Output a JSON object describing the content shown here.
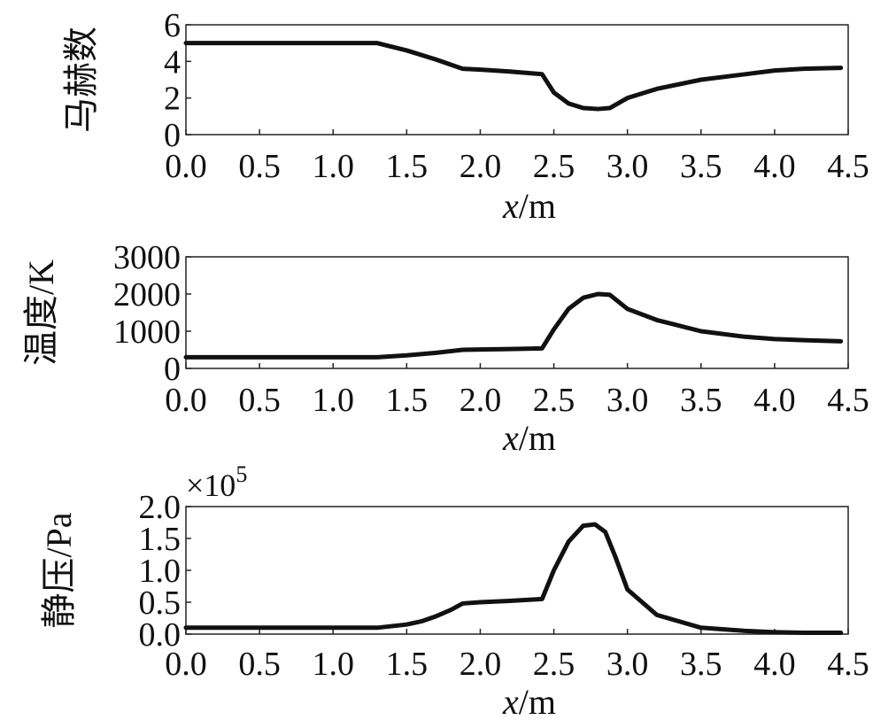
{
  "chart_data": [
    {
      "type": "line",
      "ylabel": "马赫数",
      "xlabel_var": "x",
      "xlabel_unit": "/m",
      "xlim": [
        0,
        4.5
      ],
      "ylim": [
        0,
        6
      ],
      "xticks": [
        "0.0",
        "0.5",
        "1.0",
        "1.5",
        "2.0",
        "2.5",
        "3.0",
        "3.5",
        "4.0",
        "4.5"
      ],
      "yticks": [
        "0",
        "2",
        "4",
        "6"
      ],
      "ytick_values": [
        0,
        2,
        4,
        6
      ],
      "series": [
        {
          "x": [
            0,
            0.5,
            1.0,
            1.3,
            1.5,
            1.7,
            1.88,
            2.0,
            2.2,
            2.42,
            2.5,
            2.6,
            2.7,
            2.8,
            2.88,
            3.0,
            3.2,
            3.5,
            3.8,
            4.0,
            4.2,
            4.45
          ],
          "y": [
            5.0,
            5.0,
            5.0,
            5.0,
            4.6,
            4.1,
            3.6,
            3.55,
            3.45,
            3.3,
            2.3,
            1.7,
            1.45,
            1.4,
            1.45,
            2.0,
            2.5,
            3.0,
            3.3,
            3.5,
            3.6,
            3.65
          ]
        }
      ]
    },
    {
      "type": "line",
      "ylabel": "温度/K",
      "xlabel_var": "x",
      "xlabel_unit": "/m",
      "xlim": [
        0,
        4.5
      ],
      "ylim": [
        0,
        3000
      ],
      "xticks": [
        "0.0",
        "0.5",
        "1.0",
        "1.5",
        "2.0",
        "2.5",
        "3.0",
        "3.5",
        "4.0",
        "4.5"
      ],
      "yticks": [
        "0",
        "1000",
        "2000",
        "3000"
      ],
      "ytick_values": [
        0,
        1000,
        2000,
        3000
      ],
      "series": [
        {
          "x": [
            0,
            0.5,
            1.0,
            1.3,
            1.5,
            1.7,
            1.88,
            2.0,
            2.2,
            2.42,
            2.5,
            2.6,
            2.7,
            2.8,
            2.88,
            3.0,
            3.2,
            3.5,
            3.8,
            4.0,
            4.2,
            4.45
          ],
          "y": [
            300,
            300,
            300,
            300,
            350,
            420,
            500,
            510,
            520,
            540,
            1050,
            1600,
            1900,
            2000,
            1980,
            1600,
            1300,
            1000,
            850,
            790,
            760,
            730
          ]
        }
      ]
    },
    {
      "type": "line",
      "ylabel": "静压/Pa",
      "xlabel_var": "x",
      "xlabel_unit": "/m",
      "multiplier": "×10",
      "multiplier_exp": "5",
      "xlim": [
        0,
        4.5
      ],
      "ylim": [
        0,
        2.0
      ],
      "xticks": [
        "0.0",
        "0.5",
        "1.0",
        "1.5",
        "2.0",
        "2.5",
        "3.0",
        "3.5",
        "4.0",
        "4.5"
      ],
      "yticks": [
        "0.0",
        "0.5",
        "1.0",
        "1.5",
        "2.0"
      ],
      "ytick_values": [
        0,
        0.5,
        1.0,
        1.5,
        2.0
      ],
      "series": [
        {
          "x": [
            0,
            0.5,
            1.0,
            1.3,
            1.5,
            1.6,
            1.7,
            1.8,
            1.88,
            2.0,
            2.2,
            2.42,
            2.5,
            2.6,
            2.7,
            2.78,
            2.85,
            2.92,
            3.0,
            3.2,
            3.5,
            3.8,
            4.0,
            4.2,
            4.45
          ],
          "y": [
            0.1,
            0.1,
            0.1,
            0.1,
            0.15,
            0.2,
            0.28,
            0.38,
            0.48,
            0.5,
            0.52,
            0.55,
            1.0,
            1.45,
            1.7,
            1.72,
            1.6,
            1.2,
            0.7,
            0.3,
            0.1,
            0.05,
            0.03,
            0.02,
            0.02
          ]
        }
      ]
    }
  ]
}
